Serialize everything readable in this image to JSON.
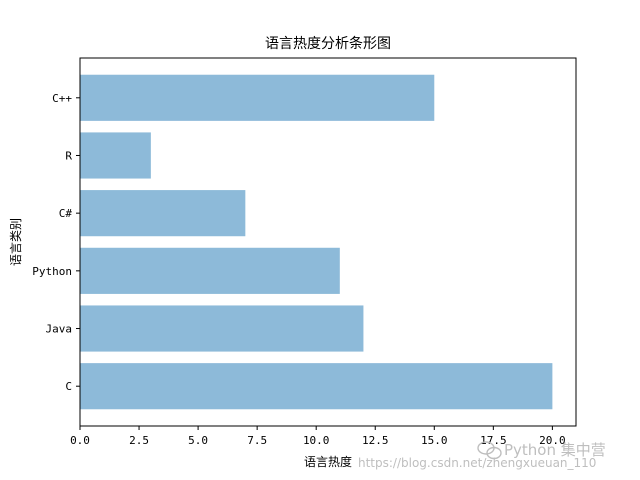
{
  "chart_data": {
    "type": "bar",
    "orientation": "horizontal",
    "title": "语言热度分析条形图",
    "xlabel": "语言热度",
    "ylabel": "语言类别",
    "categories": [
      "C",
      "Java",
      "Python",
      "C#",
      "R",
      "C++"
    ],
    "values": [
      20,
      12,
      11,
      7,
      3,
      15
    ],
    "xlim": [
      0,
      21
    ],
    "xticks": [
      "0.0",
      "2.5",
      "5.0",
      "7.5",
      "10.0",
      "12.5",
      "15.0",
      "17.5",
      "20.0"
    ],
    "bar_color": "#8dbad9",
    "grid": false
  },
  "watermark": {
    "brand": "Python 集中营",
    "url": "https://blog.csdn.net/zhengxueuan_110"
  }
}
